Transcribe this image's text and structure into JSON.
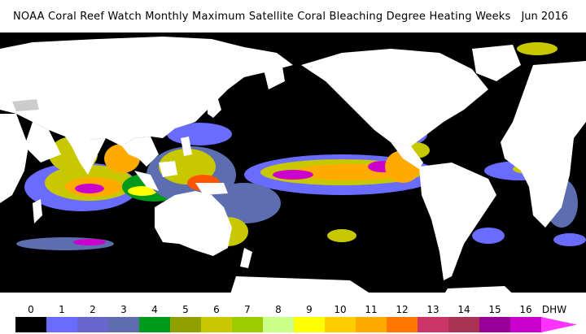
{
  "header": {
    "title": "NOAA Coral Reef Watch Monthly Maximum Satellite Coral Bleaching Degree Heating Weeks",
    "date": "Jun 2016"
  },
  "legend": {
    "unit": "DHW",
    "ticks": [
      "0",
      "1",
      "2",
      "3",
      "4",
      "5",
      "6",
      "7",
      "8",
      "9",
      "10",
      "11",
      "12",
      "13",
      "14",
      "15",
      "16"
    ],
    "colors": [
      "#000000",
      "#6a6cff",
      "#6666cc",
      "#5c6eb0",
      "#009a1a",
      "#8fa000",
      "#c8c800",
      "#9ccc00",
      "#ccff88",
      "#ffff00",
      "#ffcc00",
      "#ffaa00",
      "#ff7700",
      "#cc3366",
      "#aa3355",
      "#990099",
      "#cc00cc"
    ],
    "arrow_color": "#ff33ff"
  },
  "map": {
    "land_color": "#ffffff",
    "ocean_color": "#000000",
    "hot_colors": [
      "#6a6cff",
      "#5c6eb0",
      "#009a1a",
      "#c8c800",
      "#ffff00",
      "#ffaa00",
      "#ff5500",
      "#cc00cc"
    ]
  }
}
